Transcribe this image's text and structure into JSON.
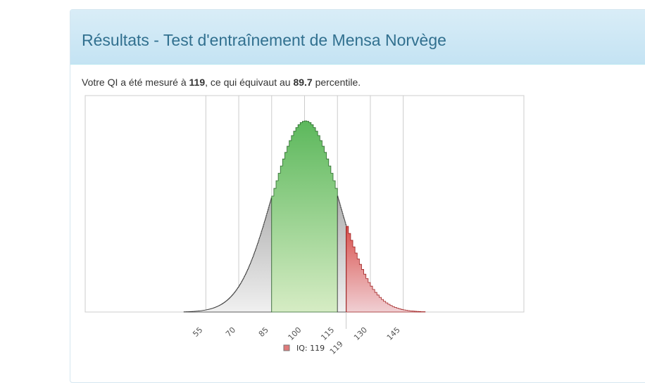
{
  "header": {
    "title": "Résultats - Test d'entraînement de Mensa Norvège"
  },
  "result": {
    "prefix": "Votre QI a été mesuré à ",
    "iq": "119",
    "middle": ", ce qui équivaut au ",
    "percentile": "89.7",
    "suffix": " percentile."
  },
  "chart_data": {
    "type": "area",
    "distribution": {
      "name": "normal",
      "mean": 100,
      "sd": 15
    },
    "xlim": [
      0,
      200
    ],
    "x_ticks": [
      "55",
      "70",
      "85",
      "100",
      "115",
      "119",
      "130",
      "145"
    ],
    "x_tick_values": [
      55,
      70,
      85,
      100,
      115,
      119,
      130,
      145
    ],
    "gridlines": [
      55,
      70,
      85,
      100,
      115,
      130,
      145
    ],
    "regions": [
      {
        "from": 45,
        "to": 85,
        "color": "#c8c8c8"
      },
      {
        "from": 85,
        "to": 115,
        "color": "#5cb85c"
      },
      {
        "from": 115,
        "to": 119,
        "color": "#c8c8c8"
      },
      {
        "from": 119,
        "to": 155,
        "color": "#d9534f"
      }
    ],
    "marker": {
      "value": 119
    },
    "legend": {
      "label": "IQ: 119",
      "position": "bottom",
      "color": "#e07a7a"
    }
  }
}
